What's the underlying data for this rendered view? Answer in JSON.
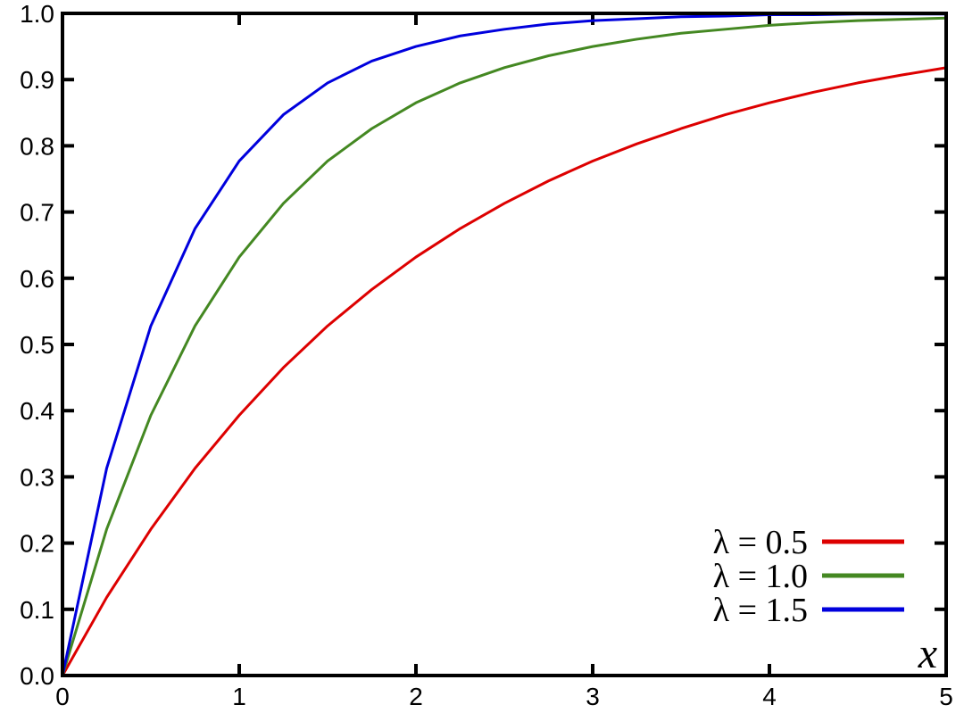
{
  "chart_data": {
    "type": "line",
    "title": "",
    "xlabel": "x",
    "ylabel": "",
    "xlim": [
      0,
      5
    ],
    "ylim": [
      0,
      1
    ],
    "grid": false,
    "legend_position": "bottom-right",
    "x_ticks": [
      "0",
      "1",
      "2",
      "3",
      "4",
      "5"
    ],
    "y_ticks": [
      "0.0",
      "0.1",
      "0.2",
      "0.3",
      "0.4",
      "0.5",
      "0.6",
      "0.7",
      "0.8",
      "0.9",
      "1.0"
    ],
    "x": [
      0,
      0.25,
      0.5,
      0.75,
      1,
      1.25,
      1.5,
      1.75,
      2,
      2.25,
      2.5,
      2.75,
      3,
      3.25,
      3.5,
      3.75,
      4,
      4.25,
      4.5,
      4.75,
      5
    ],
    "series": [
      {
        "name": "λ = 0.5",
        "color": "#dd0000",
        "values": [
          0,
          0.118,
          0.221,
          0.313,
          0.393,
          0.465,
          0.528,
          0.583,
          0.632,
          0.675,
          0.713,
          0.747,
          0.777,
          0.803,
          0.826,
          0.847,
          0.865,
          0.881,
          0.895,
          0.907,
          0.918
        ]
      },
      {
        "name": "λ = 1.0",
        "color": "#448822",
        "values": [
          0,
          0.221,
          0.393,
          0.528,
          0.632,
          0.713,
          0.777,
          0.826,
          0.865,
          0.895,
          0.918,
          0.936,
          0.95,
          0.961,
          0.97,
          0.976,
          0.982,
          0.986,
          0.989,
          0.991,
          0.993
        ]
      },
      {
        "name": "λ = 1.5",
        "color": "#0000dd",
        "values": [
          0,
          0.313,
          0.528,
          0.675,
          0.777,
          0.847,
          0.895,
          0.928,
          0.95,
          0.966,
          0.976,
          0.984,
          0.989,
          0.992,
          0.995,
          0.996,
          0.998,
          0.998,
          0.999,
          0.999,
          0.999
        ]
      }
    ]
  }
}
